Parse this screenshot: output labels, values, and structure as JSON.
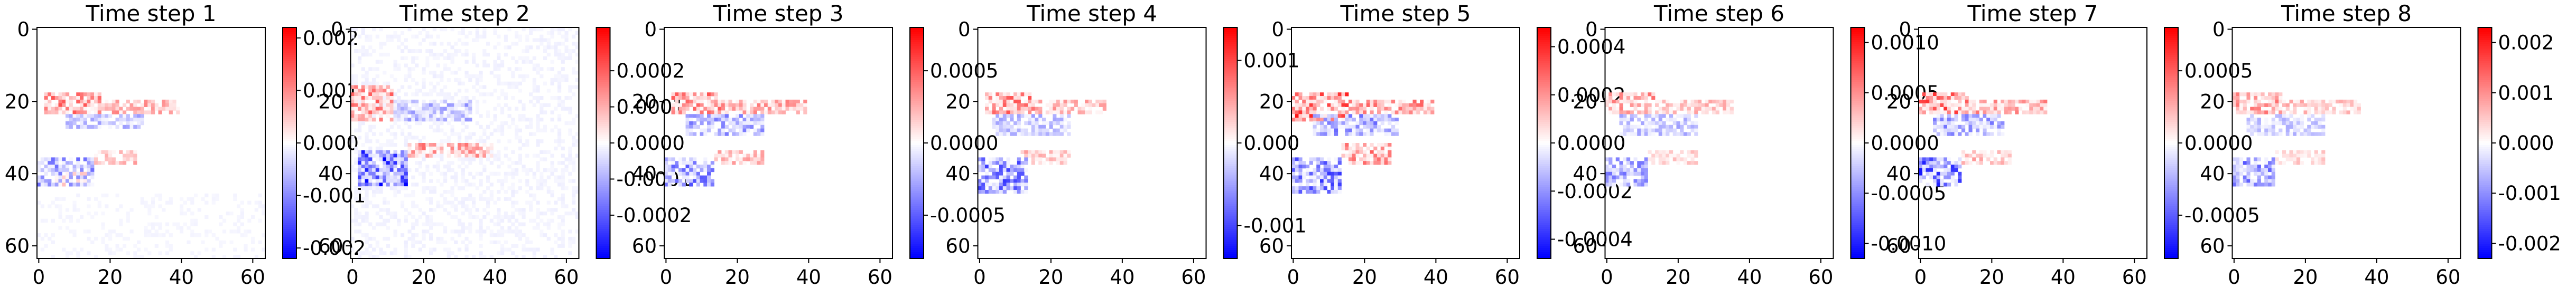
{
  "chart_data": [
    {
      "type": "heatmap",
      "title": "Time step 1",
      "grid_size": 64,
      "x_ticks": [
        "0",
        "20",
        "40",
        "60"
      ],
      "y_ticks": [
        "0",
        "20",
        "40",
        "60"
      ],
      "colorbar": {
        "cmap": "bwr",
        "range": [
          -0.0022,
          0.0022
        ],
        "ticks": [
          "0.002",
          "0.001",
          "0.000",
          "-0.001",
          "-0.002"
        ],
        "tick_values": [
          0.002,
          0.001,
          0.0,
          -0.001,
          -0.002
        ]
      },
      "blobs": [
        {
          "x": [
            2,
            18
          ],
          "y": [
            18,
            24
          ],
          "v": 0.0014
        },
        {
          "x": [
            18,
            40
          ],
          "y": [
            20,
            24
          ],
          "v": 0.001
        },
        {
          "x": [
            8,
            30
          ],
          "y": [
            24,
            28
          ],
          "v": -0.0008
        },
        {
          "x": [
            0,
            16
          ],
          "y": [
            36,
            44
          ],
          "v": -0.0012
        },
        {
          "x": [
            4,
            14
          ],
          "y": [
            40,
            44
          ],
          "v": 0.0006
        },
        {
          "x": [
            16,
            28
          ],
          "y": [
            34,
            38
          ],
          "v": 0.0008
        },
        {
          "x": [
            0,
            64
          ],
          "y": [
            46,
            64
          ],
          "v": -0.0001
        }
      ]
    },
    {
      "type": "heatmap",
      "title": "Time step 2",
      "grid_size": 64,
      "x_ticks": [
        "0",
        "20",
        "40",
        "60"
      ],
      "y_ticks": [
        "0",
        "20",
        "40",
        "60"
      ],
      "colorbar": {
        "cmap": "bwr",
        "range": [
          -0.00032,
          0.00032
        ],
        "ticks": [
          "0.0002",
          "0.0001",
          "0.0000",
          "-0.0001",
          "-0.0002"
        ],
        "tick_values": [
          0.0002,
          0.0001,
          0.0,
          -0.0001,
          -0.0002
        ]
      },
      "blobs": [
        {
          "x": [
            0,
            12
          ],
          "y": [
            16,
            26
          ],
          "v": 0.0002
        },
        {
          "x": [
            12,
            34
          ],
          "y": [
            20,
            26
          ],
          "v": -0.00012
        },
        {
          "x": [
            2,
            16
          ],
          "y": [
            34,
            44
          ],
          "v": -0.0003
        },
        {
          "x": [
            16,
            40
          ],
          "y": [
            32,
            36
          ],
          "v": 0.00018
        },
        {
          "x": [
            0,
            64
          ],
          "y": [
            0,
            64
          ],
          "v": -2e-05
        }
      ]
    },
    {
      "type": "heatmap",
      "title": "Time step 3",
      "grid_size": 64,
      "x_ticks": [
        "0",
        "20",
        "40",
        "60"
      ],
      "y_ticks": [
        "0",
        "20",
        "40",
        "60"
      ],
      "colorbar": {
        "cmap": "bwr",
        "range": [
          -0.0008,
          0.0008
        ],
        "ticks": [
          "0.0005",
          "0.0000",
          "-0.0005"
        ],
        "tick_values": [
          0.0005,
          0.0,
          -0.0005
        ]
      },
      "blobs": [
        {
          "x": [
            2,
            16
          ],
          "y": [
            18,
            24
          ],
          "v": 0.0005
        },
        {
          "x": [
            16,
            40
          ],
          "y": [
            20,
            24
          ],
          "v": 0.0004
        },
        {
          "x": [
            6,
            28
          ],
          "y": [
            24,
            30
          ],
          "v": -0.0004
        },
        {
          "x": [
            0,
            14
          ],
          "y": [
            36,
            44
          ],
          "v": -0.0005
        },
        {
          "x": [
            14,
            28
          ],
          "y": [
            34,
            38
          ],
          "v": 0.0003
        }
      ]
    },
    {
      "type": "heatmap",
      "title": "Time step 4",
      "grid_size": 64,
      "x_ticks": [
        "0",
        "20",
        "40",
        "60"
      ],
      "y_ticks": [
        "0",
        "20",
        "40",
        "60"
      ],
      "colorbar": {
        "cmap": "bwr",
        "range": [
          -0.0014,
          0.0014
        ],
        "ticks": [
          "0.001",
          "0.000",
          "-0.001"
        ],
        "tick_values": [
          0.001,
          0.0,
          -0.001
        ]
      },
      "blobs": [
        {
          "x": [
            2,
            16
          ],
          "y": [
            18,
            24
          ],
          "v": 0.0009
        },
        {
          "x": [
            16,
            36
          ],
          "y": [
            20,
            24
          ],
          "v": 0.0006
        },
        {
          "x": [
            4,
            26
          ],
          "y": [
            24,
            30
          ],
          "v": -0.0005
        },
        {
          "x": [
            0,
            14
          ],
          "y": [
            36,
            46
          ],
          "v": -0.001
        },
        {
          "x": [
            12,
            26
          ],
          "y": [
            34,
            38
          ],
          "v": 0.0005
        }
      ]
    },
    {
      "type": "heatmap",
      "title": "Time step 5",
      "grid_size": 64,
      "x_ticks": [
        "0",
        "20",
        "40",
        "60"
      ],
      "y_ticks": [
        "0",
        "20",
        "40",
        "60"
      ],
      "colorbar": {
        "cmap": "bwr",
        "range": [
          -0.00048,
          0.00048
        ],
        "ticks": [
          "0.0004",
          "0.0002",
          "0.0000",
          "-0.0002",
          "-0.0004"
        ],
        "tick_values": [
          0.0004,
          0.0002,
          0.0,
          -0.0002,
          -0.0004
        ]
      },
      "blobs": [
        {
          "x": [
            0,
            16
          ],
          "y": [
            18,
            26
          ],
          "v": 0.0004
        },
        {
          "x": [
            16,
            40
          ],
          "y": [
            20,
            24
          ],
          "v": 0.00028
        },
        {
          "x": [
            6,
            30
          ],
          "y": [
            24,
            30
          ],
          "v": -0.00026
        },
        {
          "x": [
            0,
            14
          ],
          "y": [
            36,
            46
          ],
          "v": -0.00036
        },
        {
          "x": [
            14,
            28
          ],
          "y": [
            32,
            38
          ],
          "v": 0.0003
        }
      ]
    },
    {
      "type": "heatmap",
      "title": "Time step 6",
      "grid_size": 64,
      "x_ticks": [
        "0",
        "20",
        "40",
        "60"
      ],
      "y_ticks": [
        "0",
        "20",
        "40",
        "60"
      ],
      "colorbar": {
        "cmap": "bwr",
        "range": [
          -0.00115,
          0.00115
        ],
        "ticks": [
          "0.0010",
          "0.0005",
          "0.0000",
          "-0.0005",
          "-0.0010"
        ],
        "tick_values": [
          0.001,
          0.0005,
          0.0,
          -0.0005,
          -0.001
        ]
      },
      "blobs": [
        {
          "x": [
            0,
            14
          ],
          "y": [
            18,
            24
          ],
          "v": 0.0006
        },
        {
          "x": [
            14,
            36
          ],
          "y": [
            20,
            24
          ],
          "v": 0.0004
        },
        {
          "x": [
            4,
            26
          ],
          "y": [
            24,
            30
          ],
          "v": -0.0004
        },
        {
          "x": [
            0,
            12
          ],
          "y": [
            36,
            44
          ],
          "v": -0.0006
        },
        {
          "x": [
            12,
            26
          ],
          "y": [
            34,
            38
          ],
          "v": 0.0003
        }
      ]
    },
    {
      "type": "heatmap",
      "title": "Time step 7",
      "grid_size": 64,
      "x_ticks": [
        "0",
        "20",
        "40",
        "60"
      ],
      "y_ticks": [
        "0",
        "20",
        "40",
        "60"
      ],
      "colorbar": {
        "cmap": "bwr",
        "range": [
          -0.0008,
          0.0008
        ],
        "ticks": [
          "0.0005",
          "0.0000",
          "-0.0005"
        ],
        "tick_values": [
          0.0005,
          0.0,
          -0.0005
        ]
      },
      "blobs": [
        {
          "x": [
            0,
            14
          ],
          "y": [
            18,
            24
          ],
          "v": 0.0006
        },
        {
          "x": [
            14,
            36
          ],
          "y": [
            20,
            24
          ],
          "v": 0.0004
        },
        {
          "x": [
            4,
            24
          ],
          "y": [
            24,
            30
          ],
          "v": -0.0004
        },
        {
          "x": [
            0,
            12
          ],
          "y": [
            36,
            44
          ],
          "v": -0.0007
        },
        {
          "x": [
            12,
            26
          ],
          "y": [
            34,
            38
          ],
          "v": 0.0003
        }
      ]
    },
    {
      "type": "heatmap",
      "title": "Time step 8",
      "grid_size": 64,
      "x_ticks": [
        "0",
        "20",
        "40",
        "60"
      ],
      "y_ticks": [
        "0",
        "20",
        "40",
        "60"
      ],
      "colorbar": {
        "cmap": "bwr",
        "range": [
          -0.0023,
          0.0023
        ],
        "ticks": [
          "0.002",
          "0.001",
          "0.000",
          "-0.001",
          "-0.002"
        ],
        "tick_values": [
          0.002,
          0.001,
          0.0,
          -0.001,
          -0.002
        ]
      },
      "blobs": [
        {
          "x": [
            0,
            14
          ],
          "y": [
            18,
            24
          ],
          "v": 0.0012
        },
        {
          "x": [
            14,
            36
          ],
          "y": [
            20,
            24
          ],
          "v": 0.0008
        },
        {
          "x": [
            4,
            26
          ],
          "y": [
            24,
            30
          ],
          "v": -0.0007
        },
        {
          "x": [
            0,
            12
          ],
          "y": [
            36,
            44
          ],
          "v": -0.0014
        },
        {
          "x": [
            12,
            26
          ],
          "y": [
            34,
            38
          ],
          "v": 0.0006
        }
      ]
    }
  ]
}
